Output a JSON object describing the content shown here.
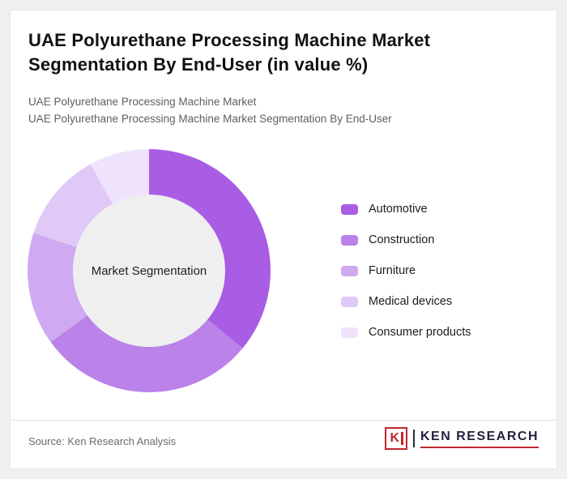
{
  "title": "UAE Polyurethane Processing Machine Market Segmentation By End-User (in value %)",
  "subtitle_line1": "UAE Polyurethane Processing Machine Market",
  "subtitle_line2": "UAE Polyurethane Processing Machine Market Segmentation By End-User",
  "chart_data": {
    "type": "pie",
    "donut": true,
    "title": "UAE Polyurethane Processing Machine Market Segmentation By End-User (in value %)",
    "center_label": "Market Segmentation",
    "legend_position": "right",
    "value_labels_shown": false,
    "start_angle_deg": 0,
    "direction": "clockwise",
    "series": [
      {
        "name": "Automotive",
        "value": 36,
        "color": "#a95ce4"
      },
      {
        "name": "Construction",
        "value": 29,
        "color": "#bb82e9"
      },
      {
        "name": "Furniture",
        "value": 15,
        "color": "#cfa9f1"
      },
      {
        "name": "Medical devices",
        "value": 12,
        "color": "#e0c9f6"
      },
      {
        "name": "Consumer products",
        "value": 8,
        "color": "#efe3fb"
      }
    ],
    "hole_color": "#efefef"
  },
  "footer": {
    "source": "Source: Ken Research Analysis",
    "logo_letter": "K",
    "logo_text": "KEN RESEARCH",
    "logo_color": "#c1272d"
  }
}
